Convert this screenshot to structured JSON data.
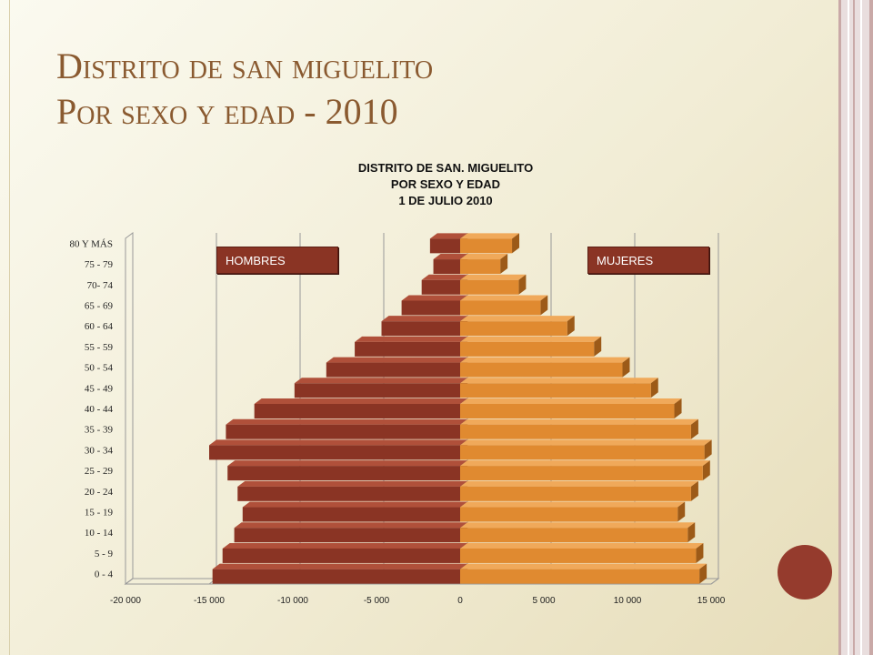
{
  "slide": {
    "title_line1": "Distrito de san miguelito",
    "title_line2": "Por sexo y edad - 2010"
  },
  "labels": {
    "men": "HOMBRES",
    "women": "MUJERES"
  },
  "colors": {
    "men": "#8a3424",
    "women": "#e08a30",
    "title": "#8a5a30",
    "accent": "#953b2d"
  },
  "chart_data": {
    "type": "bar",
    "orientation": "horizontal",
    "title_lines": [
      "DISTRITO DE SAN. MIGUELITO",
      "POR SEXO Y EDAD",
      "1 DE JULIO 2010"
    ],
    "categories": [
      "0 - 4",
      "5 - 9",
      "10 - 14",
      "15 - 19",
      "20 - 24",
      "25 - 29",
      "30 - 34",
      "35 - 39",
      "40 - 44",
      "45 - 49",
      "50 - 54",
      "55 - 59",
      "60 - 64",
      "65 - 69",
      "70- 74",
      "75 - 79",
      "80 Y MÁS"
    ],
    "series": [
      {
        "name": "HOMBRES",
        "values": [
          -14800,
          -14200,
          -13500,
          -13000,
          -13300,
          -13900,
          -15000,
          -14000,
          -12300,
          -9900,
          -8000,
          -6300,
          -4700,
          -3500,
          -2300,
          -1600,
          -1800
        ]
      },
      {
        "name": "MUJERES",
        "values": [
          14300,
          14100,
          13600,
          13000,
          13800,
          14500,
          14600,
          13800,
          12800,
          11400,
          9700,
          8000,
          6400,
          4800,
          3500,
          2400,
          3100
        ]
      }
    ],
    "xlim": [
      -20000,
      15000
    ],
    "xticks": [
      -20000,
      -15000,
      -10000,
      -5000,
      0,
      5000,
      10000,
      15000
    ],
    "xtick_labels": [
      "-20 000",
      "-15 000",
      "-10 000",
      "-5 000",
      "0",
      "5 000",
      "10 000",
      "15 000"
    ],
    "grid": true,
    "legend": "none"
  }
}
